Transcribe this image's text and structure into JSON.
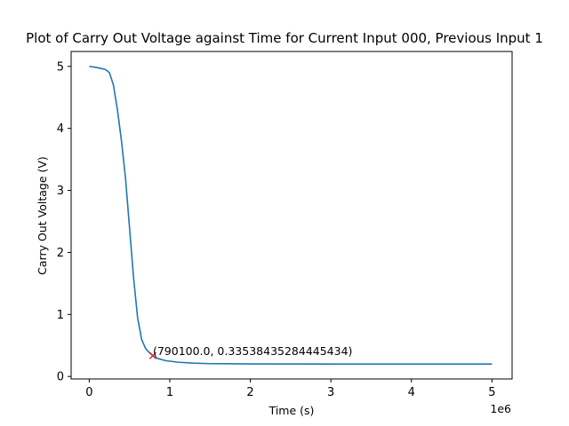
{
  "chart_data": {
    "type": "line",
    "title": "Plot of Carry Out Voltage against Time for Current Input 000, Previous Input 1",
    "xlabel": "Time (s)",
    "ylabel": "Carry Out Voltage (V)",
    "x_offset_label": "1e6",
    "xlim": [
      -225000,
      5250000
    ],
    "ylim": [
      -0.04,
      5.24
    ],
    "xticks": [
      0,
      1000000,
      2000000,
      3000000,
      4000000,
      5000000
    ],
    "xtick_labels": [
      "0",
      "1",
      "2",
      "3",
      "4",
      "5"
    ],
    "yticks": [
      0,
      1,
      2,
      3,
      4,
      5
    ],
    "ytick_labels": [
      "0",
      "1",
      "2",
      "3",
      "4",
      "5"
    ],
    "grid": false,
    "series": [
      {
        "color": "#1f77b4",
        "x": [
          0,
          100000,
          200000,
          250000,
          300000,
          350000,
          400000,
          450000,
          500000,
          550000,
          600000,
          650000,
          700000,
          750000,
          790100,
          850000,
          950000,
          1100000,
          1300000,
          1500000,
          2000000,
          3000000,
          4000000,
          5000000
        ],
        "y": [
          5.0,
          4.98,
          4.95,
          4.9,
          4.7,
          4.3,
          3.8,
          3.2,
          2.4,
          1.6,
          0.95,
          0.6,
          0.45,
          0.38,
          0.335,
          0.29,
          0.255,
          0.23,
          0.215,
          0.207,
          0.203,
          0.2,
          0.2,
          0.2
        ]
      }
    ],
    "marker": {
      "x": 790100.0,
      "y": 0.33538435284445434,
      "symbol": "x",
      "color": "#d62728",
      "label": "(790100.0, 0.33538435284445434)"
    }
  }
}
